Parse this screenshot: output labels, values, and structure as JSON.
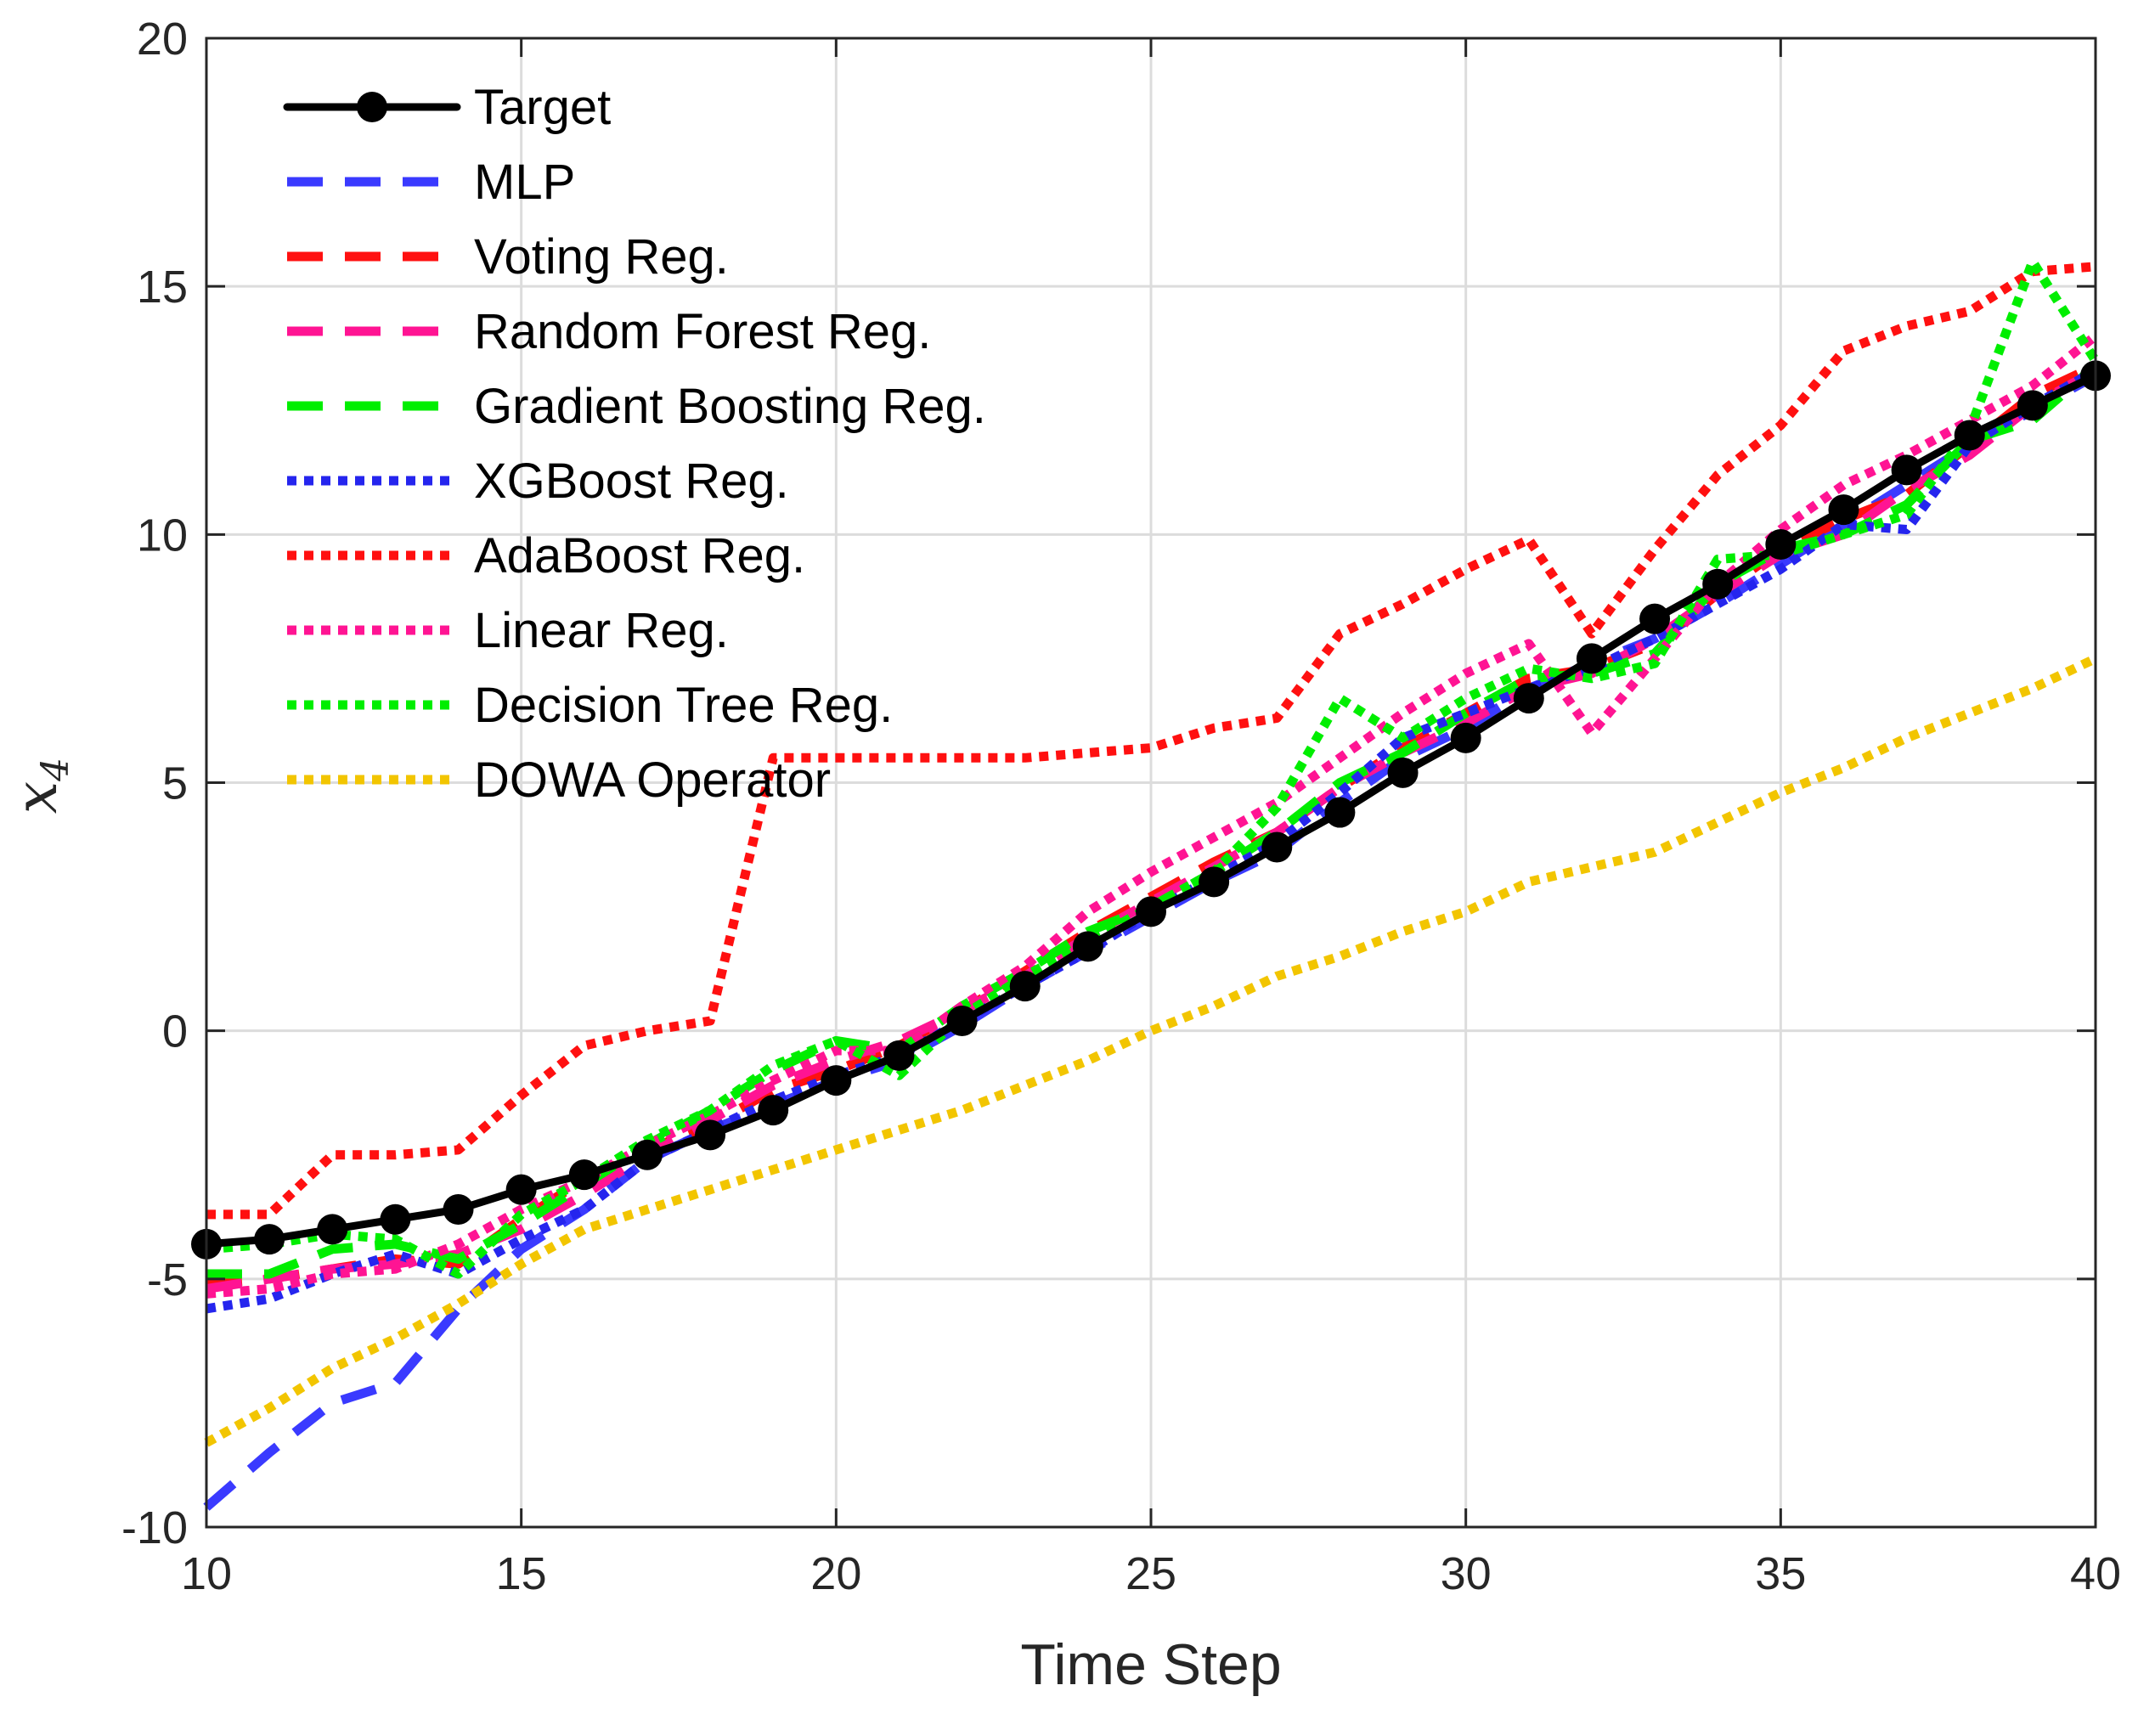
{
  "chart_data": {
    "type": "line",
    "title": "",
    "xlabel": "Time Step",
    "ylabel_var": "x",
    "ylabel_sub": "4",
    "xlim": [
      10,
      40
    ],
    "ylim": [
      -10,
      20
    ],
    "xticks": [
      10,
      15,
      20,
      25,
      30,
      35,
      40
    ],
    "yticks": [
      -10,
      -5,
      0,
      5,
      10,
      15,
      20
    ],
    "xtick_labels": [
      "10",
      "15",
      "20",
      "25",
      "30",
      "35",
      "40"
    ],
    "ytick_labels": [
      "-10",
      "-5",
      "0",
      "5",
      "10",
      "15",
      "20"
    ],
    "grid": true,
    "legend_position": "top-left",
    "x": [
      10,
      11,
      12,
      13,
      14,
      15,
      16,
      17,
      18,
      19,
      20,
      21,
      22,
      23,
      24,
      25,
      26,
      27,
      28,
      29,
      30,
      31,
      32,
      33,
      34,
      35,
      36,
      37,
      38,
      39,
      40
    ],
    "series": [
      {
        "name": "Target",
        "color": "#000000",
        "style": "solid-marker",
        "values": [
          -4.3,
          -4.2,
          -4.0,
          -3.8,
          -3.6,
          -3.2,
          -2.9,
          -2.5,
          -2.1,
          -1.6,
          -1.0,
          -0.5,
          0.2,
          0.9,
          1.7,
          2.4,
          3.0,
          3.7,
          4.4,
          5.2,
          5.9,
          6.7,
          7.5,
          8.3,
          9.0,
          9.8,
          10.5,
          11.3,
          12.0,
          12.6,
          13.2
        ]
      },
      {
        "name": "MLP",
        "color": "#3a3aff",
        "style": "dashed",
        "values": [
          -9.6,
          -8.5,
          -7.5,
          -7.1,
          -5.6,
          -4.4,
          -3.6,
          -2.6,
          -2.0,
          -1.5,
          -1.0,
          -0.6,
          0.1,
          0.9,
          1.6,
          2.3,
          3.0,
          3.6,
          4.6,
          5.5,
          6.1,
          6.9,
          7.4,
          7.9,
          8.6,
          9.4,
          10.2,
          11.0,
          11.8,
          12.5,
          13.2
        ]
      },
      {
        "name": "Voting Reg.",
        "color": "#ff1010",
        "style": "dashed",
        "values": [
          -5.1,
          -5.0,
          -4.8,
          -4.6,
          -4.7,
          -3.8,
          -3.0,
          -2.4,
          -1.9,
          -1.2,
          -0.8,
          -0.3,
          0.4,
          1.2,
          2.0,
          2.7,
          3.4,
          4.0,
          4.9,
          5.7,
          6.4,
          7.1,
          7.3,
          7.8,
          8.8,
          9.7,
          10.3,
          10.8,
          11.8,
          12.8,
          13.4
        ]
      },
      {
        "name": "Random Forest Reg.",
        "color": "#ff1493",
        "style": "dashed",
        "values": [
          -5.2,
          -5.0,
          -4.8,
          -4.7,
          -4.5,
          -4.0,
          -3.3,
          -2.5,
          -1.8,
          -1.1,
          -0.6,
          -0.2,
          0.4,
          1.1,
          1.9,
          2.6,
          3.3,
          4.0,
          4.9,
          5.6,
          6.2,
          6.9,
          7.2,
          7.9,
          8.8,
          9.6,
          10.0,
          10.9,
          11.6,
          12.6,
          13.3
        ]
      },
      {
        "name": "Gradient Boosting Reg.",
        "color": "#00ee00",
        "style": "dashed",
        "values": [
          -4.9,
          -4.9,
          -4.4,
          -4.3,
          -4.6,
          -3.9,
          -3.1,
          -2.3,
          -1.6,
          -0.8,
          -0.2,
          -0.4,
          0.5,
          1.2,
          2.0,
          2.5,
          3.2,
          4.0,
          5.0,
          5.6,
          6.4,
          7.1,
          7.2,
          7.6,
          9.0,
          9.7,
          10.0,
          10.6,
          11.9,
          12.3,
          13.4
        ]
      },
      {
        "name": "XGBoost Reg.",
        "color": "#2525ee",
        "style": "dotted",
        "values": [
          -5.6,
          -5.4,
          -4.9,
          -4.5,
          -4.9,
          -4.2,
          -3.6,
          -2.6,
          -2.0,
          -1.4,
          -0.9,
          -0.5,
          0.2,
          0.9,
          1.6,
          2.4,
          3.1,
          3.8,
          4.8,
          5.9,
          6.4,
          6.9,
          7.3,
          7.9,
          8.6,
          9.3,
          10.2,
          10.1,
          11.8,
          12.6,
          13.3
        ]
      },
      {
        "name": "AdaBoost Reg.",
        "color": "#ff1010",
        "style": "dotted",
        "values": [
          -3.7,
          -3.7,
          -2.5,
          -2.5,
          -2.4,
          -1.3,
          -0.3,
          0.0,
          0.2,
          5.5,
          5.5,
          5.5,
          5.5,
          5.5,
          5.6,
          5.7,
          6.1,
          6.3,
          8.0,
          8.6,
          9.3,
          9.9,
          8.0,
          9.7,
          11.2,
          12.2,
          13.7,
          14.2,
          14.5,
          15.3,
          15.4
        ]
      },
      {
        "name": "Linear Reg.",
        "color": "#ff1493",
        "style": "dotted",
        "values": [
          -5.3,
          -5.2,
          -4.9,
          -4.8,
          -4.3,
          -3.6,
          -3.0,
          -2.3,
          -1.7,
          -1.0,
          -0.4,
          -0.4,
          0.5,
          1.3,
          2.4,
          3.2,
          3.9,
          4.6,
          5.5,
          6.4,
          7.2,
          7.8,
          6.0,
          7.5,
          9.0,
          10.1,
          11.0,
          11.6,
          12.3,
          13.0,
          14.0
        ]
      },
      {
        "name": "Decision Tree Reg.",
        "color": "#00ee00",
        "style": "dotted",
        "values": [
          -4.4,
          -4.3,
          -4.1,
          -4.2,
          -4.9,
          -3.7,
          -3.0,
          -2.2,
          -1.6,
          -0.7,
          -0.2,
          -0.9,
          0.3,
          1.1,
          1.8,
          2.5,
          3.2,
          4.5,
          6.7,
          5.9,
          6.7,
          7.3,
          7.1,
          7.4,
          9.5,
          9.6,
          10.0,
          10.4,
          12.1,
          15.5,
          13.5
        ]
      },
      {
        "name": "DOWA Operator",
        "color": "#f2c500",
        "style": "dotted",
        "values": [
          -8.3,
          -7.6,
          -6.8,
          -6.2,
          -5.5,
          -4.7,
          -4.0,
          -3.6,
          -3.2,
          -2.8,
          -2.4,
          -2.0,
          -1.6,
          -1.1,
          -0.6,
          0.0,
          0.5,
          1.1,
          1.5,
          2.0,
          2.4,
          3.0,
          3.3,
          3.6,
          4.2,
          4.8,
          5.3,
          5.9,
          6.4,
          6.9,
          7.5
        ]
      }
    ]
  }
}
